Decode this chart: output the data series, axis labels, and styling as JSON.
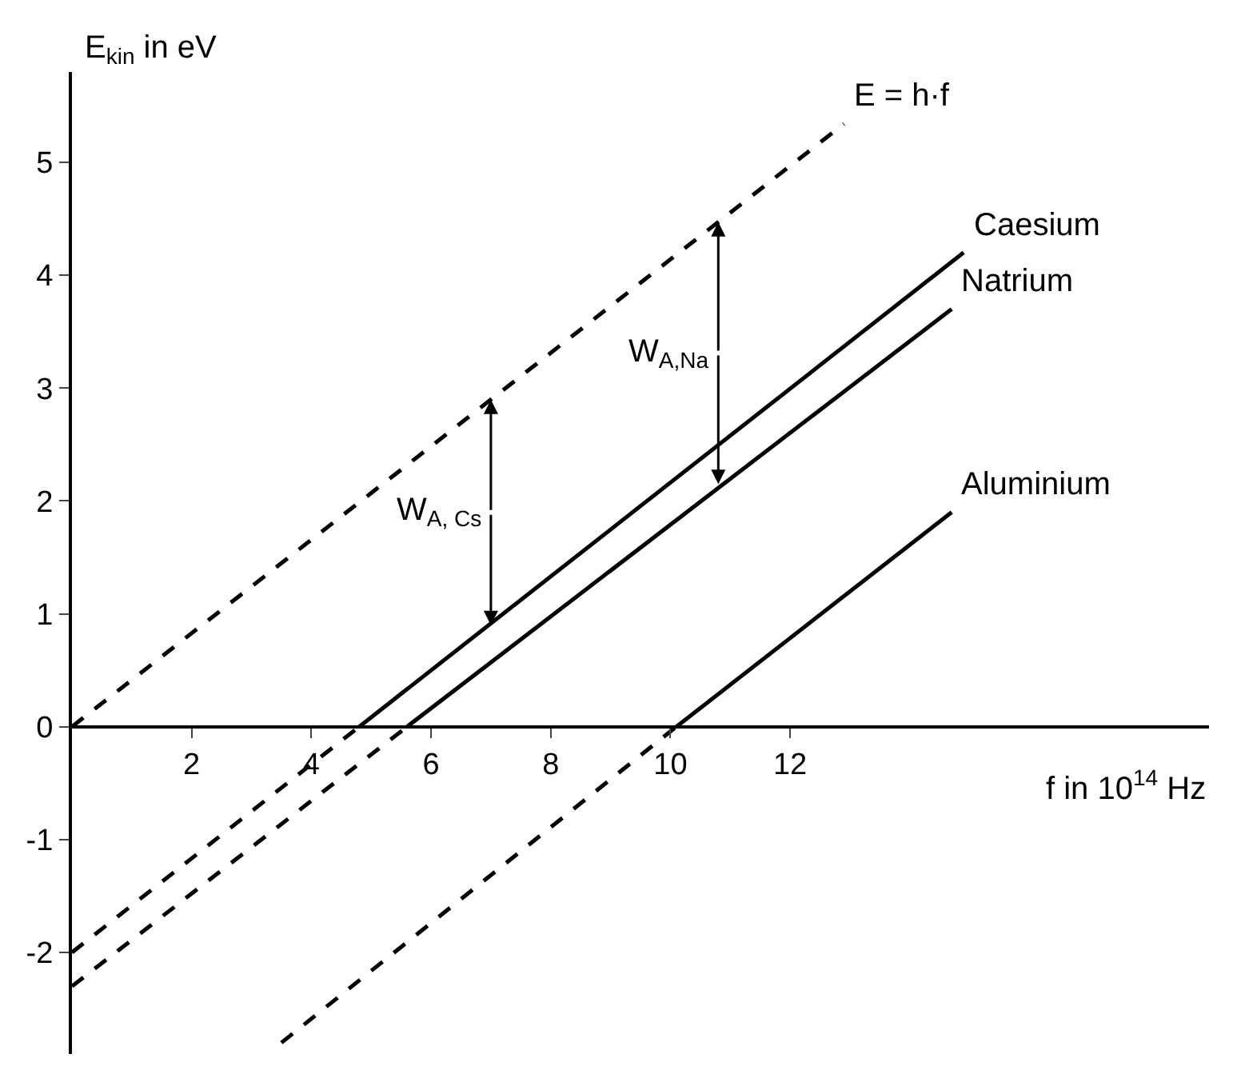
{
  "chart_data": {
    "type": "line",
    "xlabel": "f in 10$^{14}$ Hz",
    "ylabel": "E$_{kin}$ in eV",
    "xlim": [
      0,
      19
    ],
    "ylim": [
      -2.9,
      5.8
    ],
    "xticks": [
      2,
      4,
      6,
      8,
      10,
      12
    ],
    "yticks": [
      -2,
      -1,
      0,
      1,
      2,
      3,
      4,
      5
    ],
    "series": [
      {
        "name": "E = h·f",
        "color": "#000000",
        "line_style": "dashed",
        "x": [
          0,
          12.9
        ],
        "values": [
          0,
          5.34
        ]
      },
      {
        "color": "#000000",
        "line_style": "dashed",
        "x": [
          0,
          4.8
        ],
        "values": [
          -2.0,
          0
        ]
      },
      {
        "name": "Caesium",
        "color": "#000000",
        "line_style": "solid",
        "x": [
          4.8,
          14.9
        ],
        "values": [
          0,
          4.2
        ]
      },
      {
        "color": "#000000",
        "line_style": "dashed",
        "x": [
          0,
          5.6
        ],
        "values": [
          -2.3,
          0
        ]
      },
      {
        "name": "Natrium",
        "color": "#000000",
        "line_style": "solid",
        "x": [
          5.6,
          14.7
        ],
        "values": [
          0,
          3.7
        ]
      },
      {
        "color": "#000000",
        "line_style": "dashed",
        "x": [
          3.5,
          10.1
        ],
        "values": [
          -2.8,
          0
        ]
      },
      {
        "name": "Aluminium",
        "color": "#000000",
        "line_style": "solid",
        "x": [
          10.1,
          14.7
        ],
        "values": [
          0,
          1.9
        ]
      }
    ],
    "annotations": [
      {
        "text": "W$_{A, Cs}$",
        "x": 7,
        "y": 0.9
      },
      {
        "text": "W$_{A,Na}$",
        "x": 10.8,
        "y": 2.15
      }
    ]
  }
}
